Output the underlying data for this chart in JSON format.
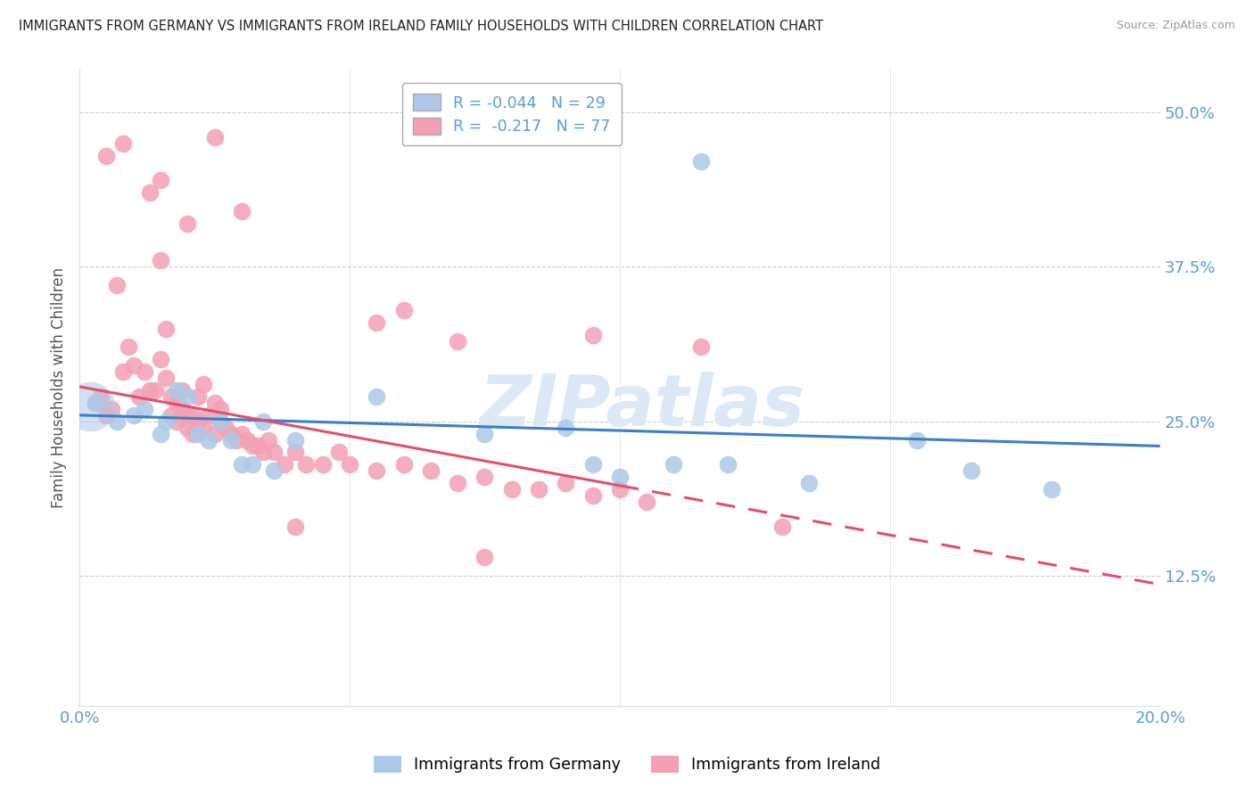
{
  "title": "IMMIGRANTS FROM GERMANY VS IMMIGRANTS FROM IRELAND FAMILY HOUSEHOLDS WITH CHILDREN CORRELATION CHART",
  "source": "Source: ZipAtlas.com",
  "ylabel": "Family Households with Children",
  "xlim": [
    0.0,
    0.2
  ],
  "ylim": [
    0.02,
    0.535
  ],
  "yticks": [
    0.125,
    0.25,
    0.375,
    0.5
  ],
  "ytick_labels": [
    "12.5%",
    "25.0%",
    "37.5%",
    "50.0%"
  ],
  "xticks": [
    0.0,
    0.05,
    0.1,
    0.15,
    0.2
  ],
  "xtick_labels": [
    "0.0%",
    "",
    "",
    "",
    "20.0%"
  ],
  "germany_color": "#adc8e8",
  "ireland_color": "#f4a0b4",
  "germany_R": -0.044,
  "germany_N": 29,
  "ireland_R": -0.217,
  "ireland_N": 77,
  "axis_color": "#5b9bd5",
  "grid_color": "#cccccc",
  "background_color": "#ffffff",
  "watermark": "ZIPatlas",
  "watermark_color": "#dce8f5",
  "germany_x": [
    0.003,
    0.007,
    0.01,
    0.012,
    0.015,
    0.016,
    0.018,
    0.02,
    0.022,
    0.024,
    0.026,
    0.028,
    0.03,
    0.032,
    0.034,
    0.036,
    0.04,
    0.055,
    0.075,
    0.09,
    0.095,
    0.1,
    0.11,
    0.12,
    0.135,
    0.155,
    0.165,
    0.18,
    0.115
  ],
  "germany_y": [
    0.265,
    0.25,
    0.255,
    0.26,
    0.24,
    0.25,
    0.275,
    0.27,
    0.24,
    0.235,
    0.25,
    0.235,
    0.215,
    0.215,
    0.25,
    0.21,
    0.235,
    0.27,
    0.24,
    0.245,
    0.215,
    0.205,
    0.215,
    0.215,
    0.2,
    0.235,
    0.21,
    0.195,
    0.46
  ],
  "germany_big_x": [
    0.002
  ],
  "germany_big_y": [
    0.262
  ],
  "ireland_x": [
    0.003,
    0.004,
    0.005,
    0.006,
    0.007,
    0.008,
    0.009,
    0.01,
    0.011,
    0.012,
    0.013,
    0.014,
    0.015,
    0.015,
    0.016,
    0.016,
    0.017,
    0.017,
    0.018,
    0.018,
    0.019,
    0.019,
    0.02,
    0.02,
    0.021,
    0.021,
    0.022,
    0.022,
    0.023,
    0.023,
    0.024,
    0.025,
    0.025,
    0.026,
    0.026,
    0.027,
    0.028,
    0.029,
    0.03,
    0.031,
    0.032,
    0.033,
    0.034,
    0.035,
    0.036,
    0.038,
    0.04,
    0.042,
    0.045,
    0.048,
    0.05,
    0.055,
    0.06,
    0.065,
    0.07,
    0.075,
    0.08,
    0.085,
    0.09,
    0.095,
    0.1,
    0.105,
    0.03,
    0.055,
    0.07,
    0.095,
    0.115,
    0.13,
    0.06,
    0.04,
    0.025,
    0.015,
    0.02,
    0.013,
    0.008,
    0.005,
    0.075
  ],
  "ireland_y": [
    0.265,
    0.27,
    0.255,
    0.26,
    0.36,
    0.29,
    0.31,
    0.295,
    0.27,
    0.29,
    0.275,
    0.275,
    0.3,
    0.38,
    0.285,
    0.325,
    0.27,
    0.255,
    0.265,
    0.25,
    0.26,
    0.275,
    0.255,
    0.245,
    0.255,
    0.24,
    0.25,
    0.27,
    0.245,
    0.28,
    0.255,
    0.265,
    0.24,
    0.26,
    0.25,
    0.245,
    0.24,
    0.235,
    0.24,
    0.235,
    0.23,
    0.23,
    0.225,
    0.235,
    0.225,
    0.215,
    0.225,
    0.215,
    0.215,
    0.225,
    0.215,
    0.21,
    0.215,
    0.21,
    0.2,
    0.205,
    0.195,
    0.195,
    0.2,
    0.19,
    0.195,
    0.185,
    0.42,
    0.33,
    0.315,
    0.32,
    0.31,
    0.165,
    0.34,
    0.165,
    0.48,
    0.445,
    0.41,
    0.435,
    0.475,
    0.465,
    0.14
  ],
  "trend_germany_x0": 0.0,
  "trend_germany_y0": 0.255,
  "trend_germany_x1": 0.2,
  "trend_germany_y1": 0.23,
  "trend_ireland_solid_x0": 0.0,
  "trend_ireland_solid_y0": 0.278,
  "trend_ireland_solid_x1": 0.1,
  "trend_ireland_solid_y1": 0.198,
  "trend_ireland_dash_x0": 0.1,
  "trend_ireland_dash_y0": 0.198,
  "trend_ireland_dash_x1": 0.2,
  "trend_ireland_dash_y1": 0.118
}
